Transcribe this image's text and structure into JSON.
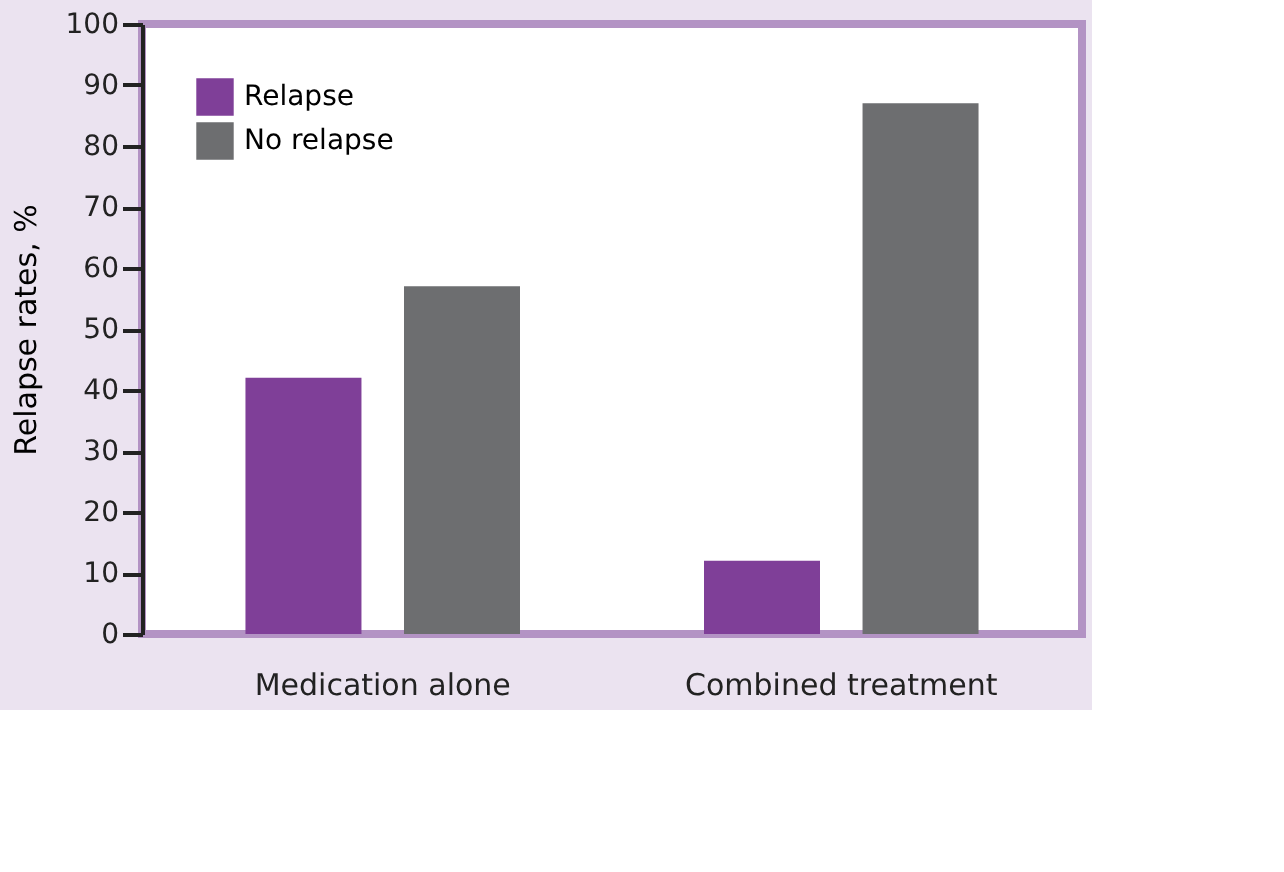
{
  "chart_data": {
    "type": "bar",
    "categories": [
      "Medication alone",
      "Combined treatment"
    ],
    "series": [
      {
        "name": "Relapse",
        "color": "#7f3f98",
        "values": [
          42,
          12
        ]
      },
      {
        "name": "No relapse",
        "color": "#6d6e70",
        "values": [
          57,
          87
        ]
      }
    ],
    "ylabel": "Relapse rates, %",
    "ylim": [
      0,
      100
    ],
    "yticks": [
      0,
      10,
      20,
      30,
      40,
      50,
      60,
      70,
      80,
      90,
      100
    ],
    "grid": false,
    "legend": "top left"
  }
}
